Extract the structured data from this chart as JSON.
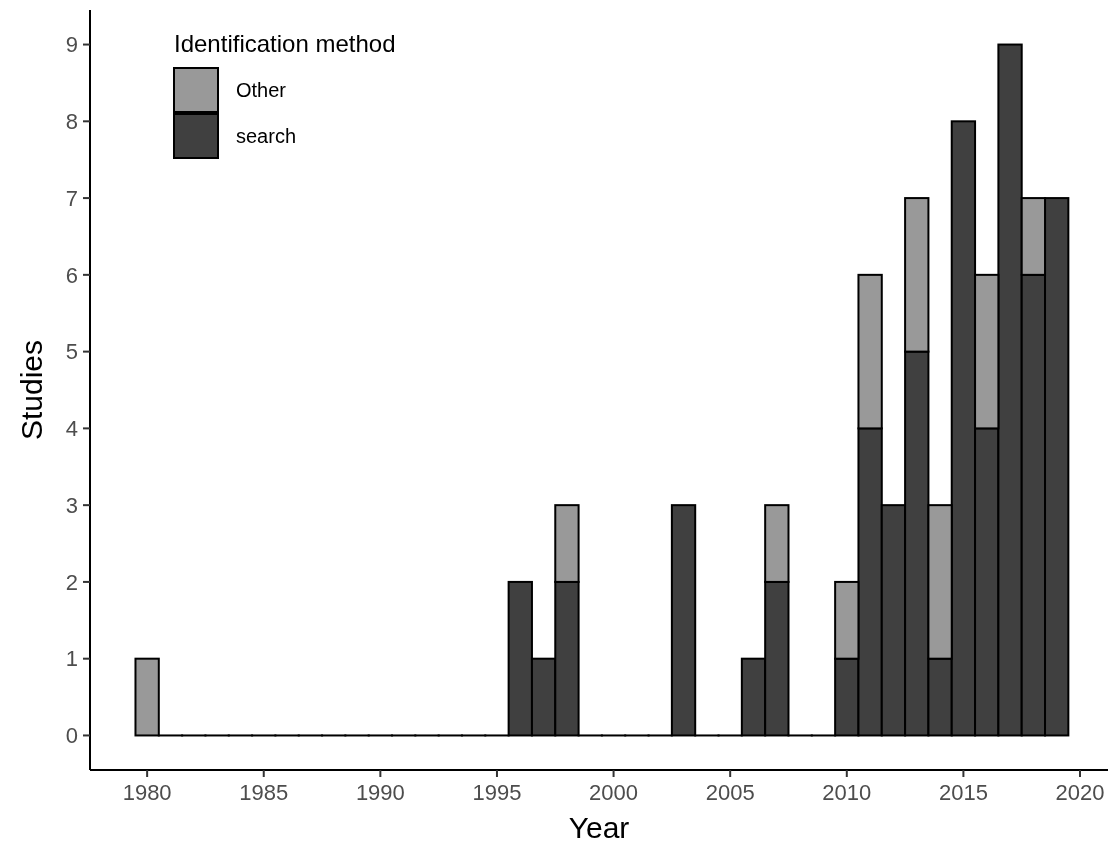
{
  "chart_data": {
    "type": "bar",
    "xlabel": "Year",
    "ylabel": "Studies",
    "legend_title": "Identification method",
    "stacked": true,
    "legend": "top left",
    "grid": false,
    "x": [
      1980,
      1981,
      1982,
      1983,
      1984,
      1985,
      1986,
      1987,
      1988,
      1989,
      1990,
      1991,
      1992,
      1993,
      1994,
      1995,
      1996,
      1997,
      1998,
      1999,
      2000,
      2001,
      2002,
      2003,
      2004,
      2005,
      2006,
      2007,
      2008,
      2009,
      2010,
      2011,
      2012,
      2013,
      2014,
      2015,
      2016,
      2017,
      2018,
      2019
    ],
    "series": [
      {
        "name": "search",
        "color": "#404040",
        "values": [
          0,
          0,
          0,
          0,
          0,
          0,
          0,
          0,
          0,
          0,
          0,
          0,
          0,
          0,
          0,
          0,
          2,
          1,
          2,
          0,
          0,
          0,
          0,
          3,
          0,
          0,
          1,
          2,
          0,
          0,
          1,
          4,
          3,
          5,
          1,
          8,
          4,
          9,
          6,
          7
        ]
      },
      {
        "name": "Other",
        "color": "#999999",
        "values": [
          1,
          0,
          0,
          0,
          0,
          0,
          0,
          0,
          0,
          0,
          0,
          0,
          0,
          0,
          0,
          0,
          0,
          0,
          1,
          0,
          0,
          0,
          0,
          0,
          0,
          0,
          0,
          1,
          0,
          0,
          1,
          2,
          0,
          2,
          2,
          0,
          2,
          0,
          1,
          0
        ]
      }
    ],
    "xlim": [
      1977.55,
      2021.2
    ],
    "xticks": [
      1980,
      1985,
      1990,
      1995,
      2000,
      2005,
      2010,
      2015,
      2020
    ],
    "ylim": [
      -0.45,
      9.45
    ],
    "yticks": [
      0,
      1,
      2,
      3,
      4,
      5,
      6,
      7,
      8,
      9
    ]
  }
}
